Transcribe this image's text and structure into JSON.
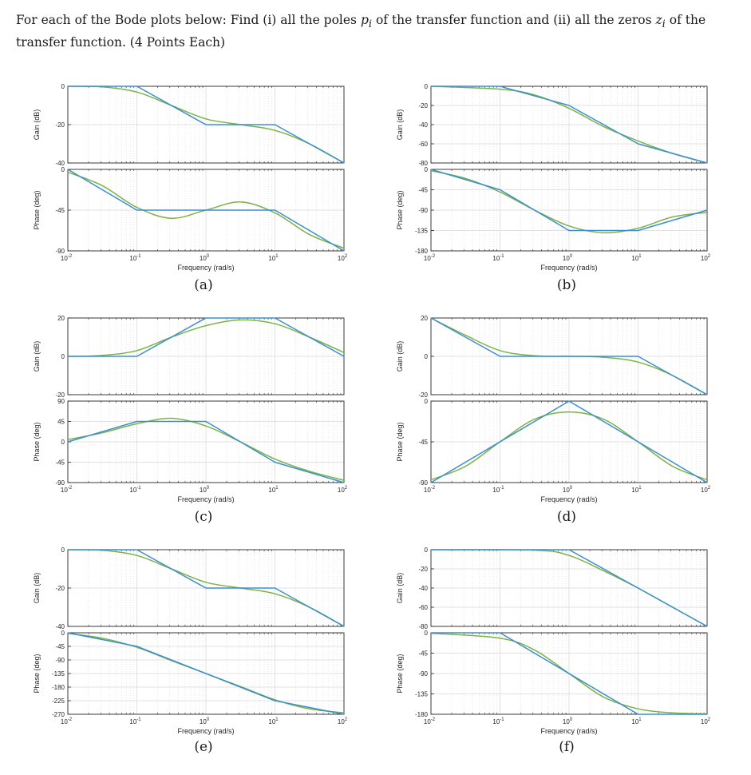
{
  "question": "For each of the Bode plots below: Find (i) all the poles p_i of the transfer function and (ii) all the zeros z_i of the transfer function. (4 Points Each)",
  "common": {
    "xlabel": "Frequency (rad/s)",
    "gain_ylabel": "Gain (dB)",
    "phase_ylabel": "Phase (deg)",
    "x_ticks": [
      "10^-2",
      "10^-1",
      "10^0",
      "10^1",
      "10^2"
    ],
    "x_range_log10": [
      -2,
      2
    ],
    "colors": {
      "asymptote": "#3a8fd3",
      "actual": "#7cb342",
      "grid": "#d9d9d9",
      "axis": "#262626"
    }
  },
  "chart_data": [
    {
      "caption": "(a)",
      "type": "line",
      "gain": {
        "ylim": [
          -40,
          0
        ],
        "yticks": [
          0,
          -20,
          -40
        ],
        "asymptote": [
          [
            -2,
            0
          ],
          [
            -1,
            0
          ],
          [
            0,
            -20
          ],
          [
            1,
            -20
          ],
          [
            2,
            -40
          ]
        ],
        "actual": [
          [
            -2,
            0
          ],
          [
            -1.5,
            -0.3
          ],
          [
            -1,
            -3
          ],
          [
            -0.5,
            -10
          ],
          [
            0,
            -17
          ],
          [
            0.5,
            -20
          ],
          [
            1,
            -23
          ],
          [
            1.5,
            -30
          ],
          [
            2,
            -40
          ]
        ]
      },
      "phase": {
        "ylim": [
          -90,
          0
        ],
        "yticks": [
          0,
          -45,
          -90
        ],
        "asymptote": [
          [
            -2,
            0
          ],
          [
            -1,
            -45
          ],
          [
            1,
            -45
          ],
          [
            2,
            -90
          ]
        ],
        "actual": [
          [
            -2,
            -3
          ],
          [
            -1.5,
            -18
          ],
          [
            -1,
            -42
          ],
          [
            -0.5,
            -54
          ],
          [
            0,
            -45
          ],
          [
            0.5,
            -36
          ],
          [
            1,
            -48
          ],
          [
            1.5,
            -72
          ],
          [
            2,
            -87
          ]
        ]
      }
    },
    {
      "caption": "(b)",
      "type": "line",
      "gain": {
        "ylim": [
          -80,
          0
        ],
        "yticks": [
          0,
          -20,
          -40,
          -60,
          -80
        ],
        "asymptote": [
          [
            -2,
            0
          ],
          [
            -1,
            0
          ],
          [
            0,
            -20
          ],
          [
            1,
            -60
          ],
          [
            2,
            -80
          ]
        ],
        "actual": [
          [
            -2,
            0
          ],
          [
            -1,
            -3
          ],
          [
            -0.5,
            -9
          ],
          [
            0,
            -23
          ],
          [
            0.5,
            -42
          ],
          [
            1,
            -57
          ],
          [
            1.5,
            -70
          ],
          [
            2,
            -80
          ]
        ]
      },
      "phase": {
        "ylim": [
          -180,
          0
        ],
        "yticks": [
          0,
          -45,
          -90,
          -135,
          -180
        ],
        "asymptote": [
          [
            -2,
            0
          ],
          [
            -1,
            -45
          ],
          [
            0,
            -135
          ],
          [
            1,
            -135
          ],
          [
            2,
            -90
          ]
        ],
        "actual": [
          [
            -2,
            -3
          ],
          [
            -1.5,
            -20
          ],
          [
            -1,
            -50
          ],
          [
            -0.5,
            -90
          ],
          [
            0,
            -125
          ],
          [
            0.5,
            -140
          ],
          [
            1,
            -130
          ],
          [
            1.5,
            -105
          ],
          [
            2,
            -95
          ]
        ]
      }
    },
    {
      "caption": "(c)",
      "type": "line",
      "gain": {
        "ylim": [
          -20,
          20
        ],
        "yticks": [
          20,
          0,
          -20
        ],
        "asymptote": [
          [
            -2,
            0
          ],
          [
            -1,
            0
          ],
          [
            0,
            20
          ],
          [
            1,
            20
          ],
          [
            2,
            0
          ]
        ],
        "actual": [
          [
            -2,
            0
          ],
          [
            -1.5,
            0.5
          ],
          [
            -1,
            3
          ],
          [
            -0.5,
            10
          ],
          [
            0,
            16
          ],
          [
            0.5,
            19
          ],
          [
            1,
            17
          ],
          [
            1.5,
            10
          ],
          [
            2,
            2
          ]
        ]
      },
      "phase": {
        "ylim": [
          -90,
          90
        ],
        "yticks": [
          90,
          45,
          0,
          -45,
          -90
        ],
        "asymptote": [
          [
            -2,
            0
          ],
          [
            -1,
            45
          ],
          [
            0,
            45
          ],
          [
            1,
            -45
          ],
          [
            2,
            -90
          ]
        ],
        "actual": [
          [
            -2,
            5
          ],
          [
            -1.5,
            20
          ],
          [
            -1,
            40
          ],
          [
            -0.5,
            52
          ],
          [
            0,
            35
          ],
          [
            0.5,
            0
          ],
          [
            1,
            -38
          ],
          [
            1.5,
            -65
          ],
          [
            2,
            -85
          ]
        ]
      }
    },
    {
      "caption": "(d)",
      "type": "line",
      "gain": {
        "ylim": [
          -20,
          20
        ],
        "yticks": [
          20,
          0,
          -20
        ],
        "asymptote": [
          [
            -2,
            20
          ],
          [
            -1,
            0
          ],
          [
            1,
            0
          ],
          [
            2,
            -20
          ]
        ],
        "actual": [
          [
            -2,
            20
          ],
          [
            -1.5,
            11
          ],
          [
            -1,
            3
          ],
          [
            -0.5,
            0.3
          ],
          [
            0,
            0
          ],
          [
            0.5,
            -0.5
          ],
          [
            1,
            -3
          ],
          [
            1.5,
            -10
          ],
          [
            2,
            -20
          ]
        ]
      },
      "phase": {
        "ylim": [
          -90,
          0
        ],
        "yticks": [
          0,
          -45,
          -90
        ],
        "asymptote": [
          [
            -2,
            -90
          ],
          [
            0,
            0
          ],
          [
            2,
            -90
          ]
        ],
        "actual": [
          [
            -2,
            -87
          ],
          [
            -1.5,
            -72
          ],
          [
            -1,
            -45
          ],
          [
            -0.5,
            -20
          ],
          [
            0,
            -12
          ],
          [
            0.5,
            -20
          ],
          [
            1,
            -45
          ],
          [
            1.5,
            -72
          ],
          [
            2,
            -87
          ]
        ]
      }
    },
    {
      "caption": "(e)",
      "type": "line",
      "gain": {
        "ylim": [
          -40,
          0
        ],
        "yticks": [
          0,
          -20,
          -40
        ],
        "asymptote": [
          [
            -2,
            0
          ],
          [
            -1,
            0
          ],
          [
            0,
            -20
          ],
          [
            1,
            -20
          ],
          [
            2,
            -40
          ]
        ],
        "actual": [
          [
            -2,
            0
          ],
          [
            -1.5,
            -0.3
          ],
          [
            -1,
            -3
          ],
          [
            -0.5,
            -10
          ],
          [
            0,
            -17
          ],
          [
            0.5,
            -20
          ],
          [
            1,
            -23
          ],
          [
            1.5,
            -30
          ],
          [
            2,
            -40
          ]
        ]
      },
      "phase": {
        "ylim": [
          -270,
          0
        ],
        "yticks": [
          0,
          -45,
          -90,
          -135,
          -180,
          -225,
          -270
        ],
        "asymptote": [
          [
            -2,
            0
          ],
          [
            -1,
            -45
          ],
          [
            1,
            -225
          ],
          [
            2,
            -270
          ]
        ],
        "actual": [
          [
            -2,
            -2
          ],
          [
            -1.5,
            -18
          ],
          [
            -1,
            -48
          ],
          [
            -0.5,
            -92
          ],
          [
            0,
            -135
          ],
          [
            0.5,
            -178
          ],
          [
            1,
            -222
          ],
          [
            1.5,
            -252
          ],
          [
            2,
            -265
          ]
        ]
      }
    },
    {
      "caption": "(f)",
      "type": "line",
      "gain": {
        "ylim": [
          -80,
          0
        ],
        "yticks": [
          0,
          -20,
          -40,
          -60,
          -80
        ],
        "asymptote": [
          [
            -2,
            0
          ],
          [
            0,
            0
          ],
          [
            2,
            -80
          ]
        ],
        "actual": [
          [
            -2,
            0
          ],
          [
            -0.5,
            -0.5
          ],
          [
            0,
            -6
          ],
          [
            0.5,
            -22
          ],
          [
            1,
            -40
          ],
          [
            1.5,
            -60
          ],
          [
            2,
            -80
          ]
        ]
      },
      "phase": {
        "ylim": [
          -180,
          0
        ],
        "yticks": [
          0,
          -45,
          -90,
          -135,
          -180
        ],
        "asymptote": [
          [
            -2,
            0
          ],
          [
            -1,
            0
          ],
          [
            1,
            -180
          ],
          [
            2,
            -180
          ]
        ],
        "actual": [
          [
            -2,
            -1
          ],
          [
            -1,
            -12
          ],
          [
            -0.5,
            -38
          ],
          [
            0,
            -90
          ],
          [
            0.5,
            -142
          ],
          [
            1,
            -168
          ],
          [
            1.5,
            -177
          ],
          [
            2,
            -179
          ]
        ]
      }
    }
  ]
}
